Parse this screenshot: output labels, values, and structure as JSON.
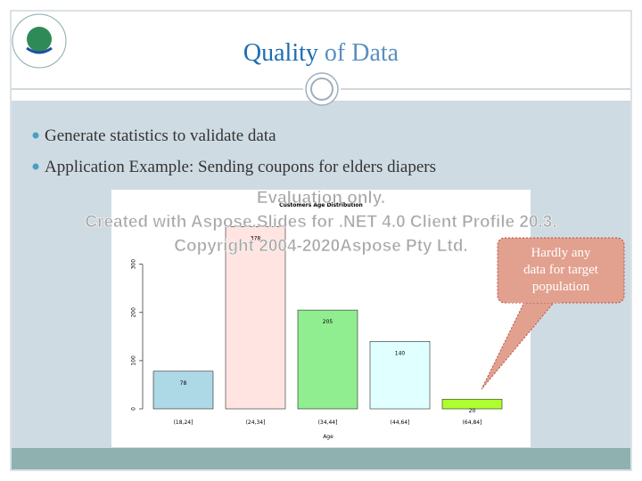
{
  "header": {
    "title_strong": "Quality",
    "title_rest": "of Data"
  },
  "bullets": [
    "Generate statistics to validate data",
    "Application Example: Sending coupons for elders diapers"
  ],
  "chart_data": {
    "type": "bar",
    "title": "Customers Age Distribution",
    "x_label": "Age",
    "categories": [
      "(18,24]",
      "(24,34]",
      "(34,44]",
      "(44,64]",
      "(64,84]"
    ],
    "values": [
      78,
      378,
      205,
      140,
      20
    ],
    "colors": [
      "#add8e6",
      "#ffe4e1",
      "#90ee90",
      "#e0ffff",
      "#adff2f"
    ],
    "ylim": [
      0,
      390
    ],
    "yticks": [
      0,
      100,
      200,
      300
    ]
  },
  "callout": {
    "lines": [
      "Hardly any",
      "data for target",
      "population"
    ]
  },
  "watermark": [
    "Evaluation only.",
    "Created with Aspose.Slides for .NET 4.0 Client Profile 20.3.",
    "Copyright 2004-2020Aspose Pty Ltd."
  ]
}
